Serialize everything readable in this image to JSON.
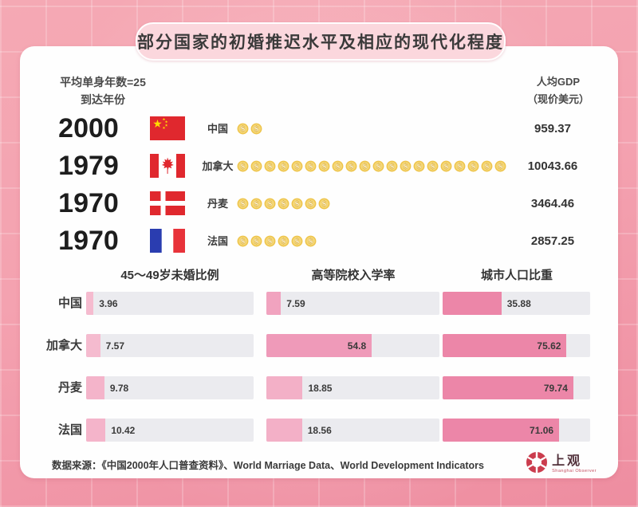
{
  "title": "部分国家的初婚推迟水平及相应的现代化程度",
  "header": {
    "left_line1": "平均单身年数=25",
    "left_line2": "到达年份",
    "right_line1": "人均GDP",
    "right_line2": "（现价美元）"
  },
  "countries": [
    {
      "year": "2000",
      "flag_icon": "china-flag",
      "name": "中国",
      "coin_count": 2,
      "gdp": "959.37"
    },
    {
      "year": "1979",
      "flag_icon": "canada-flag",
      "name": "加拿大",
      "coin_count": 20,
      "gdp": "10043.66"
    },
    {
      "year": "1970",
      "flag_icon": "denmark-flag",
      "name": "丹麦",
      "coin_count": 7,
      "gdp": "3464.46"
    },
    {
      "year": "1970",
      "flag_icon": "france-flag",
      "name": "法国",
      "coin_count": 6,
      "gdp": "2857.25"
    }
  ],
  "chart_data": {
    "type": "bar",
    "orientation": "horizontal",
    "categories": [
      "中国",
      "加拿大",
      "丹麦",
      "法国"
    ],
    "series": [
      {
        "name": "45～49岁未婚比例",
        "values": [
          3.96,
          7.57,
          9.78,
          10.42
        ],
        "colors": [
          "#f5bbcf",
          "#f5bbcf",
          "#f4b4ca",
          "#f4b4ca"
        ]
      },
      {
        "name": "高等院校入学率",
        "values": [
          7.59,
          54.8,
          18.85,
          18.56
        ],
        "colors": [
          "#f1a3bf",
          "#ef9ab9",
          "#f3b0c7",
          "#f3b0c7"
        ]
      },
      {
        "name": "城市人口比重",
        "values": [
          35.88,
          75.62,
          79.74,
          71.06
        ],
        "colors": [
          "#ec86a8",
          "#ec86a8",
          "#ec86a8",
          "#ec86a8"
        ]
      }
    ],
    "xlim": [
      0,
      90
    ],
    "grid": false,
    "legend": "none",
    "value_labels": true,
    "track_color": "#ebebef"
  },
  "footer": {
    "source": "数据来源：《中国2000年人口普查资料》、World Marriage Data、World Development Indicators",
    "logo_text": "上观",
    "logo_subtext": "Shanghai Observer"
  },
  "colors": {
    "background": "#f4a3b1",
    "banner_bg": "#fbd7dd",
    "card_bg": "#fefefe",
    "coin_gold": "#f0c94e",
    "bar_track": "#ebebef",
    "text_dark": "#3a3a3a"
  }
}
